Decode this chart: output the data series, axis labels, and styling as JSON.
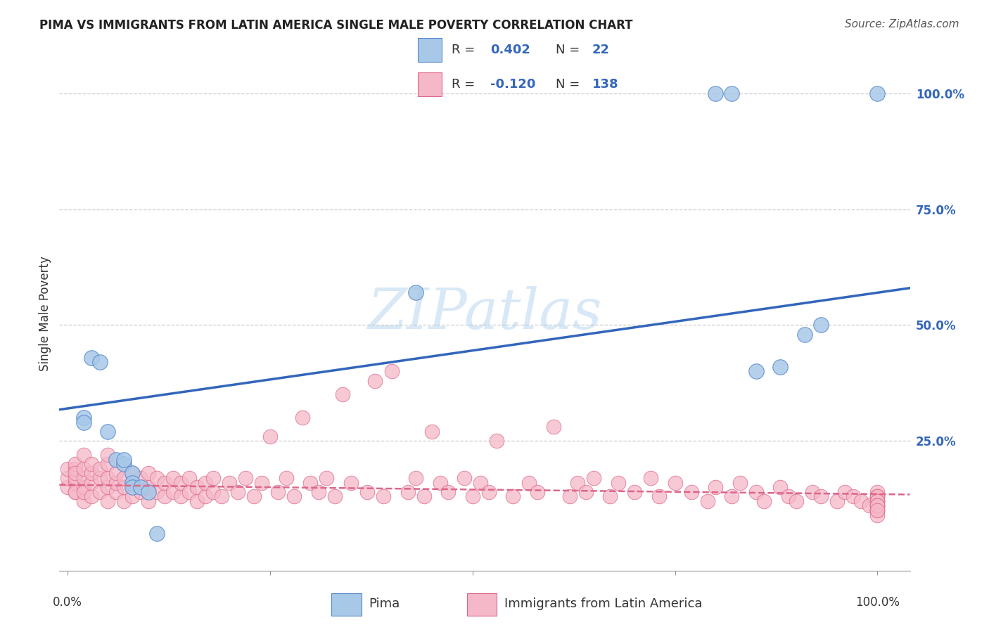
{
  "title": "PIMA VS IMMIGRANTS FROM LATIN AMERICA SINGLE MALE POVERTY CORRELATION CHART",
  "source": "Source: ZipAtlas.com",
  "ylabel": "Single Male Poverty",
  "pima_R": 0.402,
  "pima_N": 22,
  "latin_R": -0.12,
  "latin_N": 138,
  "pima_color": "#A8C8E8",
  "pima_edge_color": "#5588CC",
  "pima_line_color": "#3366BB",
  "latin_color": "#F5B8C8",
  "latin_edge_color": "#DD6688",
  "latin_line_color": "#DD6688",
  "background_color": "#FFFFFF",
  "grid_color": "#CCCCCC",
  "right_axis_color": "#3366BB",
  "pima_x": [
    0.02,
    0.02,
    0.03,
    0.04,
    0.05,
    0.06,
    0.07,
    0.07,
    0.08,
    0.08,
    0.08,
    0.09,
    0.1,
    0.11,
    0.43,
    0.8,
    0.82,
    0.85,
    0.88,
    0.91,
    0.93,
    1.0
  ],
  "pima_y": [
    0.3,
    0.29,
    0.43,
    0.42,
    0.27,
    0.21,
    0.2,
    0.21,
    0.18,
    0.16,
    0.15,
    0.15,
    0.14,
    0.05,
    0.57,
    1.0,
    1.0,
    0.4,
    0.41,
    0.48,
    0.5,
    1.0
  ],
  "latin_x": [
    0.0,
    0.0,
    0.0,
    0.01,
    0.01,
    0.01,
    0.01,
    0.01,
    0.01,
    0.01,
    0.02,
    0.02,
    0.02,
    0.02,
    0.02,
    0.02,
    0.03,
    0.03,
    0.03,
    0.03,
    0.04,
    0.04,
    0.04,
    0.05,
    0.05,
    0.05,
    0.05,
    0.05,
    0.06,
    0.06,
    0.06,
    0.07,
    0.07,
    0.07,
    0.07,
    0.08,
    0.08,
    0.08,
    0.09,
    0.09,
    0.1,
    0.1,
    0.1,
    0.11,
    0.11,
    0.12,
    0.12,
    0.13,
    0.13,
    0.14,
    0.14,
    0.15,
    0.15,
    0.16,
    0.16,
    0.17,
    0.17,
    0.18,
    0.18,
    0.19,
    0.2,
    0.21,
    0.22,
    0.23,
    0.24,
    0.25,
    0.26,
    0.27,
    0.28,
    0.29,
    0.3,
    0.31,
    0.32,
    0.33,
    0.34,
    0.35,
    0.37,
    0.38,
    0.39,
    0.4,
    0.42,
    0.43,
    0.44,
    0.45,
    0.46,
    0.47,
    0.49,
    0.5,
    0.51,
    0.52,
    0.53,
    0.55,
    0.57,
    0.58,
    0.6,
    0.62,
    0.63,
    0.64,
    0.65,
    0.67,
    0.68,
    0.7,
    0.72,
    0.73,
    0.75,
    0.77,
    0.79,
    0.8,
    0.82,
    0.83,
    0.85,
    0.86,
    0.88,
    0.89,
    0.9,
    0.92,
    0.93,
    0.95,
    0.96,
    0.97,
    0.98,
    0.99,
    1.0,
    1.0,
    1.0,
    1.0,
    1.0,
    1.0,
    1.0,
    1.0,
    1.0,
    1.0,
    1.0,
    1.0,
    1.0,
    1.0,
    1.0,
    1.0
  ],
  "latin_y": [
    0.15,
    0.17,
    0.19,
    0.14,
    0.16,
    0.17,
    0.19,
    0.2,
    0.14,
    0.18,
    0.12,
    0.15,
    0.17,
    0.19,
    0.22,
    0.14,
    0.13,
    0.16,
    0.18,
    0.2,
    0.14,
    0.17,
    0.19,
    0.12,
    0.15,
    0.17,
    0.2,
    0.22,
    0.14,
    0.16,
    0.18,
    0.12,
    0.15,
    0.17,
    0.2,
    0.13,
    0.16,
    0.18,
    0.14,
    0.17,
    0.12,
    0.15,
    0.18,
    0.14,
    0.17,
    0.13,
    0.16,
    0.14,
    0.17,
    0.13,
    0.16,
    0.14,
    0.17,
    0.12,
    0.15,
    0.13,
    0.16,
    0.14,
    0.17,
    0.13,
    0.16,
    0.14,
    0.17,
    0.13,
    0.16,
    0.26,
    0.14,
    0.17,
    0.13,
    0.3,
    0.16,
    0.14,
    0.17,
    0.13,
    0.35,
    0.16,
    0.14,
    0.38,
    0.13,
    0.4,
    0.14,
    0.17,
    0.13,
    0.27,
    0.16,
    0.14,
    0.17,
    0.13,
    0.16,
    0.14,
    0.25,
    0.13,
    0.16,
    0.14,
    0.28,
    0.13,
    0.16,
    0.14,
    0.17,
    0.13,
    0.16,
    0.14,
    0.17,
    0.13,
    0.16,
    0.14,
    0.12,
    0.15,
    0.13,
    0.16,
    0.14,
    0.12,
    0.15,
    0.13,
    0.12,
    0.14,
    0.13,
    0.12,
    0.14,
    0.13,
    0.12,
    0.11,
    0.13,
    0.12,
    0.14,
    0.11,
    0.13,
    0.12,
    0.1,
    0.12,
    0.11,
    0.13,
    0.1,
    0.12,
    0.11,
    0.09,
    0.11,
    0.1
  ],
  "pima_line_x0": 0.0,
  "pima_line_y0": 0.32,
  "pima_line_x1": 1.0,
  "pima_line_y1": 0.57,
  "latin_line_x0": 0.0,
  "latin_line_y0": 0.155,
  "latin_line_x1": 1.0,
  "latin_line_y1": 0.135,
  "ymin": -0.03,
  "ymax": 1.08,
  "xmin": -0.01,
  "xmax": 1.04,
  "yticks": [
    0.0,
    0.25,
    0.5,
    0.75,
    1.0
  ],
  "ytick_labels": [
    "",
    "25.0%",
    "50.0%",
    "75.0%",
    "100.0%"
  ]
}
